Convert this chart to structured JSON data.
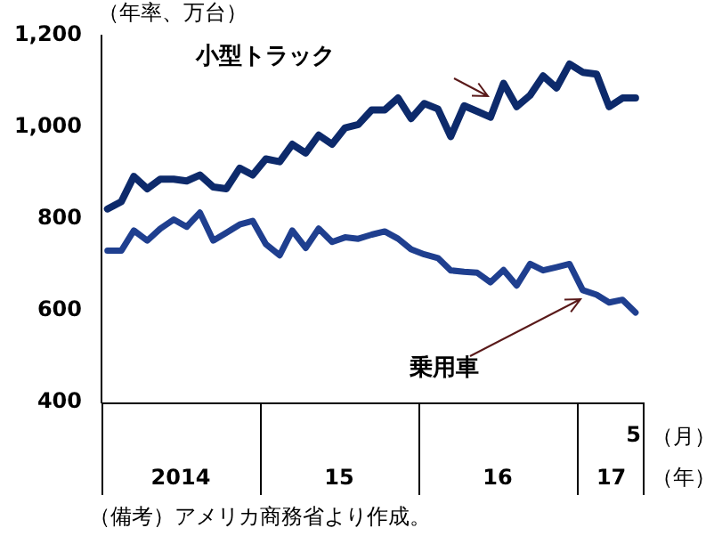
{
  "chart_data": {
    "type": "line",
    "ylabel": "（年率、万台）",
    "x": [
      "2014-01-15",
      "2014-02-15",
      "2014-03-15",
      "2014-04-15",
      "2014-05-15",
      "2014-06-15",
      "2014-07-15",
      "2014-08-15",
      "2014-09-15",
      "2014-10-15",
      "2014-11-15",
      "2014-12-15",
      "2015-01-15",
      "2015-02-15",
      "2015-03-15",
      "2015-04-15",
      "2015-05-15",
      "2015-06-15",
      "2015-07-15",
      "2015-08-15",
      "2015-09-15",
      "2015-10-15",
      "2015-11-15",
      "2015-12-15",
      "2016-01-15",
      "2016-02-15",
      "2016-03-15",
      "2016-04-15",
      "2016-05-15",
      "2016-06-15",
      "2016-07-15",
      "2016-08-15",
      "2016-09-15",
      "2016-10-15",
      "2016-11-15",
      "2016-12-15",
      "2017-01-15",
      "2017-02-15",
      "2017-03-15",
      "2017-04-15",
      "2017-05-15"
    ],
    "series": [
      {
        "name": "小型トラック",
        "color": "#0d2a6b",
        "values": [
          822,
          838,
          893,
          866,
          887,
          887,
          883,
          896,
          870,
          866,
          911,
          896,
          931,
          925,
          963,
          944,
          983,
          963,
          999,
          1006,
          1038,
          1038,
          1064,
          1019,
          1052,
          1040,
          980,
          1047,
          1035,
          1022,
          1096,
          1045,
          1070,
          1112,
          1086,
          1138,
          1120,
          1116,
          1045,
          1064,
          1064
        ]
      },
      {
        "name": "乗用車",
        "color": "#1f3f8f",
        "values": [
          731,
          731,
          775,
          753,
          779,
          799,
          783,
          814,
          753,
          770,
          788,
          796,
          745,
          721,
          775,
          737,
          779,
          750,
          760,
          757,
          766,
          773,
          757,
          734,
          723,
          715,
          688,
          685,
          683,
          662,
          689,
          655,
          702,
          688,
          695,
          702,
          645,
          635,
          618,
          624,
          596
        ]
      }
    ],
    "xlim": [
      "2014-01",
      "2017-06"
    ],
    "xticks": [
      {
        "value": "2014-07",
        "label": "2014"
      },
      {
        "value": "2015-07",
        "label": "15"
      },
      {
        "value": "2016-07",
        "label": "16"
      },
      {
        "value": "2017-03-20",
        "label": "17"
      }
    ],
    "ylim": [
      400,
      1200
    ],
    "yticks": [
      400,
      600,
      800,
      {
        "value": 1000,
        "label": "1,000"
      },
      {
        "value": 1200,
        "label": "1,200"
      }
    ],
    "legend": false,
    "annotations": [
      "5",
      "（月）",
      "（年）",
      "（備考）アメリカ商務省より作成。"
    ]
  }
}
